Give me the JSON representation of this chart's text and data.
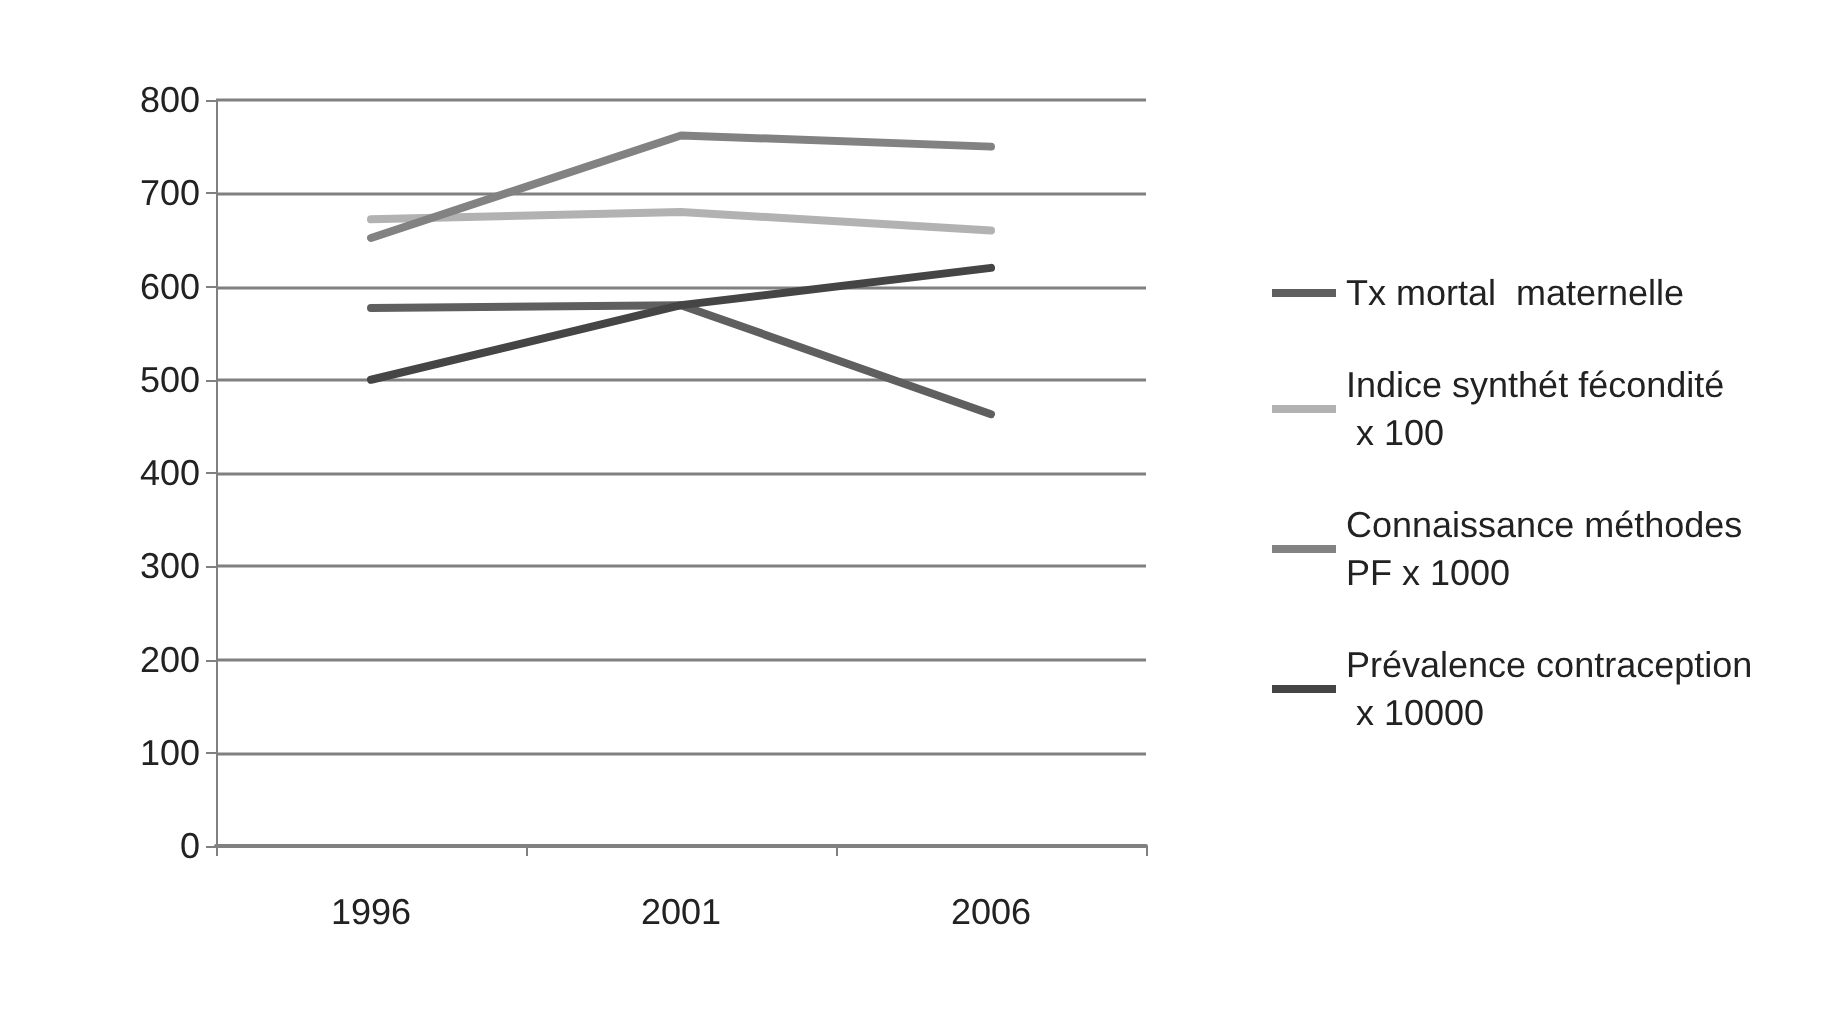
{
  "chart_data": {
    "type": "line",
    "categories": [
      "1996",
      "2001",
      "2006"
    ],
    "series": [
      {
        "name": "Tx mortal  maternelle",
        "color": "#5f5f5f",
        "values": [
          577,
          580,
          463
        ]
      },
      {
        "name": "Indice synthét fécondité x 100",
        "color": "#b2b2b2",
        "values": [
          672,
          680,
          660
        ]
      },
      {
        "name": "Connaissance méthodes PF x 1000",
        "color": "#828282",
        "values": [
          652,
          762,
          750
        ]
      },
      {
        "name": "Prévalence contraception x 10000",
        "color": "#454545",
        "values": [
          500,
          580,
          620
        ]
      }
    ],
    "ylim": [
      0,
      800
    ],
    "yticks": [
      0,
      100,
      200,
      300,
      400,
      500,
      600,
      700,
      800
    ],
    "grid": "y",
    "legend": "right",
    "marker": "none",
    "line_style": "solid"
  }
}
